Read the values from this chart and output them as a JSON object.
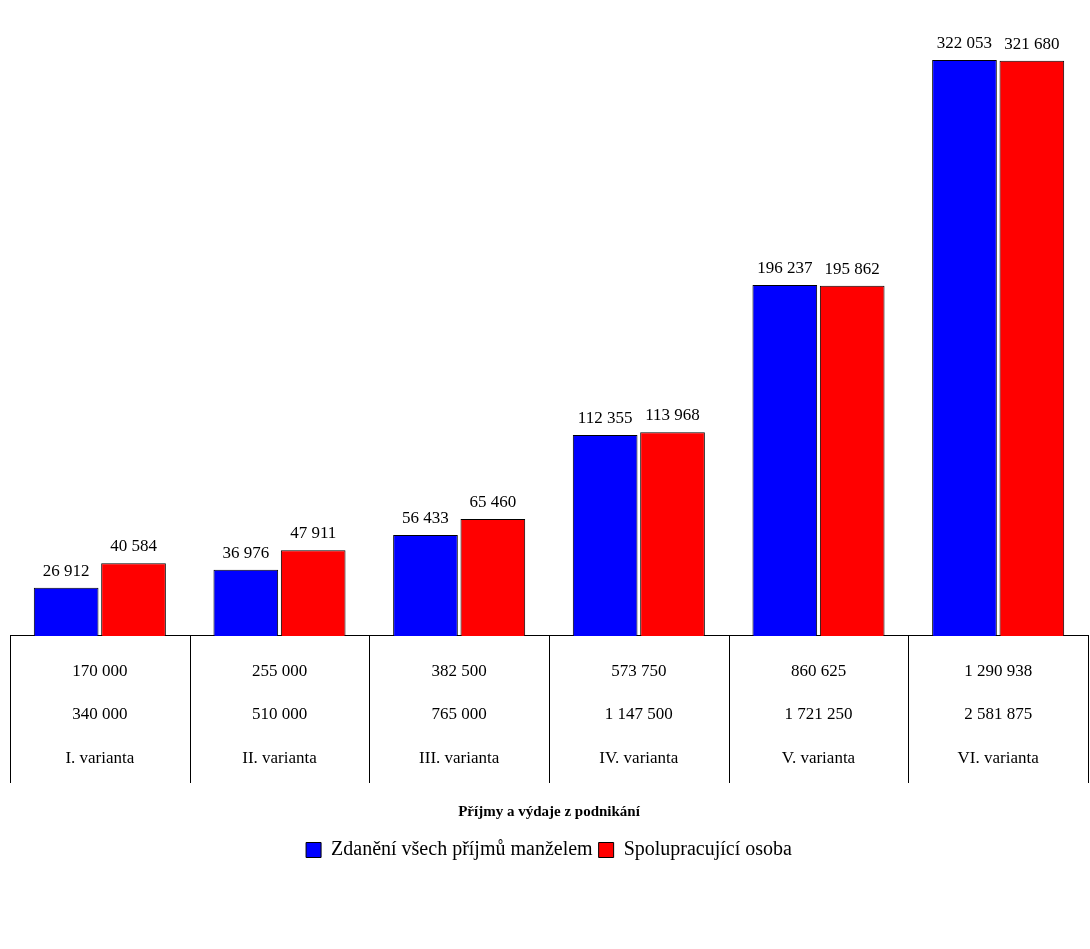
{
  "chart_data": {
    "type": "bar",
    "annotations": [
      "Příjmy a výdaje z podnikání"
    ],
    "categories": [
      "170 000\n340 000\nI. varianta",
      "255 000\n510 000\nII. varianta",
      "382 500\n765 000\nIII. varianta",
      "573 750\n1 147 500\nIV. varianta",
      "860 625\n1 721 250\nV. varianta",
      "1 290 938\n2 581 875\nVI. varianta"
    ],
    "series": [
      {
        "name": "Zdanění všech příjmů manželem",
        "color": "#0000ff",
        "values": [
          26912,
          36976,
          56433,
          112355,
          196237,
          322053
        ],
        "value_labels": [
          "26 912",
          "36 976",
          "56 433",
          "112 355",
          "196 237",
          "322 053"
        ]
      },
      {
        "name": "Spolupracující osoba",
        "color": "#ff0000",
        "values": [
          40584,
          47911,
          65460,
          113968,
          195862,
          321680
        ],
        "value_labels": [
          "40 584",
          "47 911",
          "65 460",
          "113 968",
          "195 862",
          "321 680"
        ]
      }
    ],
    "legend": "bottom",
    "grid": false
  }
}
